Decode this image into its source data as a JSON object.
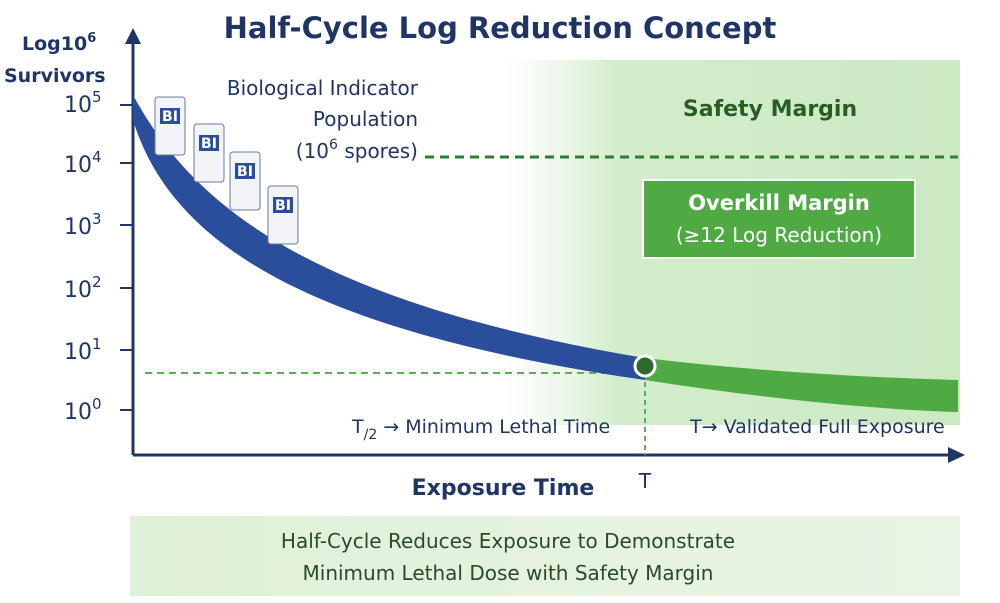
{
  "header": {
    "title": "Half-Cycle Log Reduction Concept"
  },
  "y_axis": {
    "label_line1": "Log",
    "label_base": "10",
    "label_exp": "6",
    "label_line2": "Survivors",
    "ticks": [
      {
        "base": "10",
        "exp": "5"
      },
      {
        "base": "10",
        "exp": "4"
      },
      {
        "base": "10",
        "exp": "3"
      },
      {
        "base": "10",
        "exp": "2"
      },
      {
        "base": "10",
        "exp": "1"
      },
      {
        "base": "10",
        "exp": "0"
      }
    ]
  },
  "x_axis": {
    "label": "Exposure Time",
    "tick": "T"
  },
  "population": {
    "line1": "Biological Indicator",
    "line2": "Population",
    "line3_open": "(10",
    "line3_exp": "6",
    "line3_close": " spores)"
  },
  "indicators": [
    "BI",
    "BI",
    "BI",
    "BI"
  ],
  "safety_margin": "Safety Margin",
  "overkill": {
    "title": "Overkill Margin",
    "subtitle": "(≥12 Log Reduction)"
  },
  "half_time": {
    "symbol": "T",
    "divisor": "/2",
    "text": "→ Minimum Lethal Time"
  },
  "full_time": "T→ Validated Full Exposure",
  "footer": {
    "line1": "Half-Cycle Reduces Exposure to Demonstrate",
    "line2": "Minimum Lethal Dose with Safety Margin"
  }
}
